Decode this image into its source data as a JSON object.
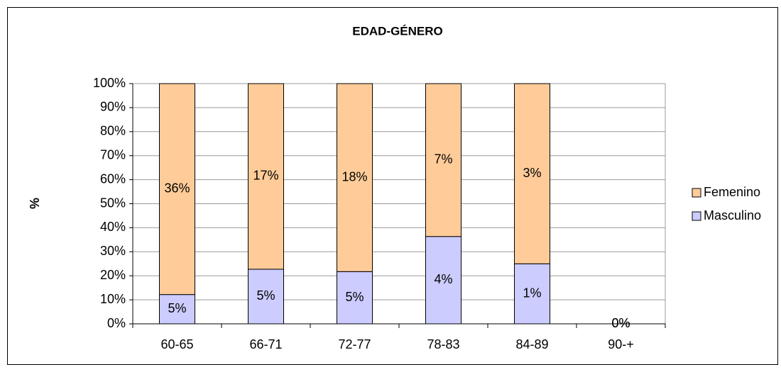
{
  "chart_data": {
    "type": "bar",
    "stacking": "percent",
    "title": "EDAD-GÉNERO",
    "y_label": "%",
    "categories": [
      "60-65",
      "66-71",
      "72-77",
      "78-83",
      "84-89",
      "90-+"
    ],
    "series": [
      {
        "name": "Masculino",
        "color": "#ccccff",
        "values": [
          5,
          5,
          5,
          4,
          1,
          0
        ],
        "value_labels": [
          "5%",
          "5%",
          "5%",
          "4%",
          "1%",
          "0%"
        ]
      },
      {
        "name": "Femenino",
        "color": "#ffcc99",
        "values": [
          36,
          17,
          18,
          7,
          3,
          0
        ],
        "value_labels": [
          "36%",
          "17%",
          "18%",
          "7%",
          "3%",
          "0%"
        ]
      }
    ],
    "ylim": [
      0,
      100
    ],
    "yticks": [
      {
        "value": 0,
        "label": "0%"
      },
      {
        "value": 10,
        "label": "10%"
      },
      {
        "value": 20,
        "label": "20%"
      },
      {
        "value": 30,
        "label": "30%"
      },
      {
        "value": 40,
        "label": "40%"
      },
      {
        "value": 50,
        "label": "50%"
      },
      {
        "value": 60,
        "label": "60%"
      },
      {
        "value": 70,
        "label": "70%"
      },
      {
        "value": 80,
        "label": "80%"
      },
      {
        "value": 90,
        "label": "90%"
      },
      {
        "value": 100,
        "label": "100%"
      }
    ],
    "grid": true,
    "legend": "right"
  }
}
